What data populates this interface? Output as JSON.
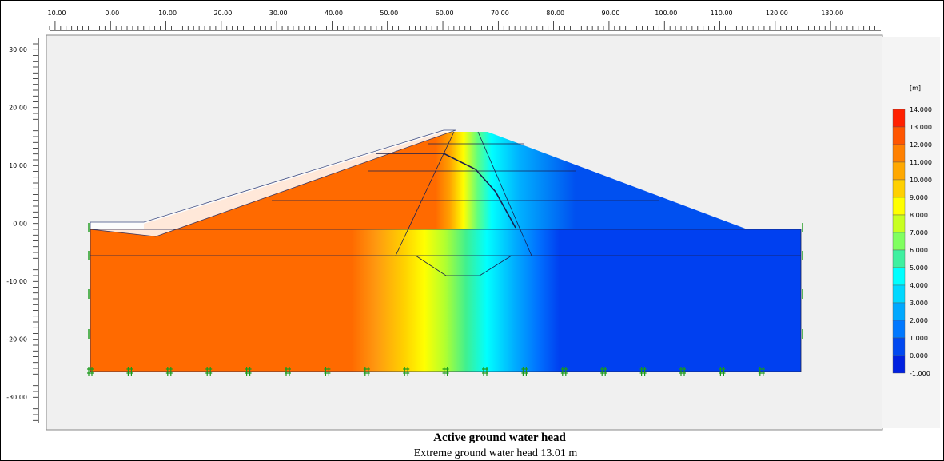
{
  "ruler": {
    "x_labels": [
      "10.00",
      "0.00",
      "10.00",
      "20.00",
      "30.00",
      "40.00",
      "50.00",
      "60.00",
      "70.00",
      "80.00",
      "90.00",
      "100.00",
      "110.00",
      "120.00",
      "130.00"
    ],
    "y_labels": [
      "30.00",
      "20.00",
      "10.00",
      "0.00",
      "-10.00",
      "-20.00",
      "-30.00"
    ]
  },
  "legend": {
    "unit": "[m]",
    "labels": [
      "14.000",
      "13.000",
      "12.000",
      "11.000",
      "10.000",
      "9.000",
      "8.000",
      "7.000",
      "6.000",
      "5.000",
      "4.000",
      "3.000",
      "2.000",
      "1.000",
      "0.000",
      "-1.000"
    ]
  },
  "caption": {
    "title": "Active ground water head",
    "subtitle": "Extreme ground water head 13.01 m"
  }
}
